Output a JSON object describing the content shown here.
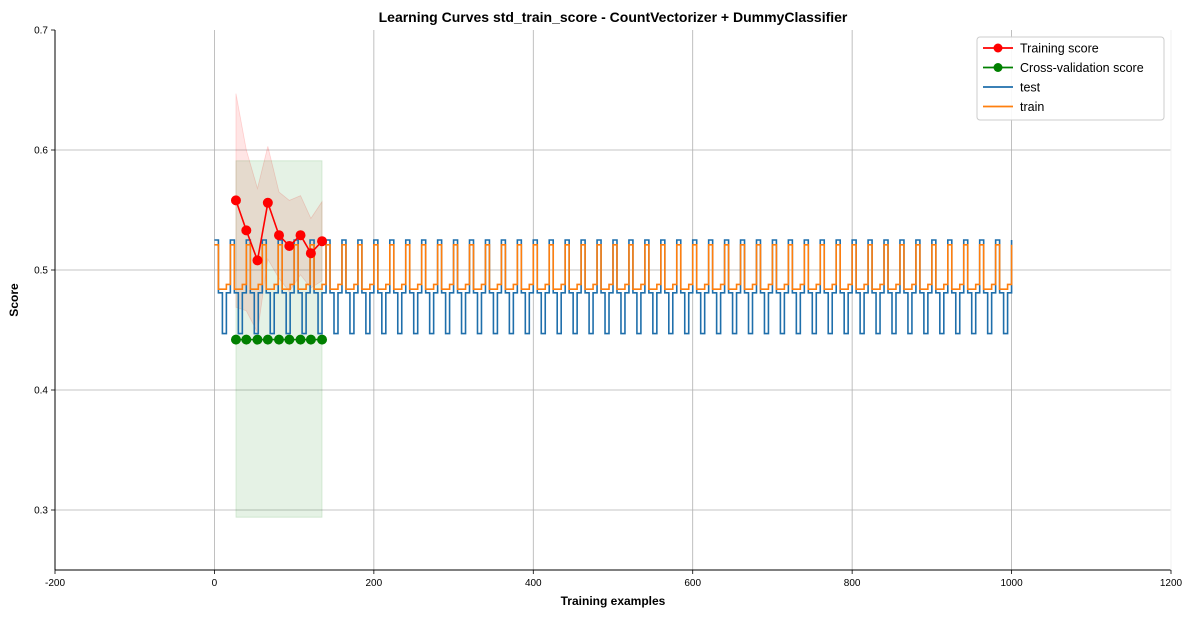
{
  "chart_data": {
    "type": "line",
    "title": "Learning Curves std_train_score - CountVectorizer + DummyClassifier",
    "xlabel": "Training examples",
    "ylabel": "Score",
    "xlim": [
      -200,
      1200
    ],
    "ylim": [
      0.25,
      0.7
    ],
    "xticks": [
      -200,
      0,
      200,
      400,
      600,
      800,
      1000,
      1200
    ],
    "yticks": [
      0.3,
      0.4,
      0.5,
      0.6,
      0.7
    ],
    "grid": true,
    "legend_position": "top-right",
    "train_sizes": [
      27,
      40,
      54,
      67,
      81,
      94,
      108,
      121,
      135
    ],
    "training_score": {
      "name": "Training score",
      "color": "#ff0000",
      "marker": "circle",
      "mean": [
        0.558,
        0.533,
        0.508,
        0.556,
        0.529,
        0.52,
        0.529,
        0.514,
        0.524
      ],
      "upper": [
        0.647,
        0.6,
        0.568,
        0.603,
        0.565,
        0.558,
        0.562,
        0.543,
        0.557
      ],
      "lower": [
        0.469,
        0.466,
        0.448,
        0.509,
        0.493,
        0.482,
        0.496,
        0.485,
        0.491
      ]
    },
    "cv_score": {
      "name": "Cross-validation score",
      "color": "#008000",
      "marker": "circle",
      "mean": [
        0.442,
        0.442,
        0.442,
        0.442,
        0.442,
        0.442,
        0.442,
        0.442,
        0.442
      ],
      "upper": [
        0.591,
        0.591,
        0.591,
        0.591,
        0.591,
        0.591,
        0.591,
        0.591,
        0.591
      ],
      "lower": [
        0.294,
        0.294,
        0.294,
        0.294,
        0.294,
        0.294,
        0.294,
        0.294,
        0.294
      ]
    },
    "step_series": [
      {
        "name": "test",
        "color": "#1f6fab",
        "x_start": 0,
        "x_end": 1000,
        "period": 20,
        "pattern_x": [
          0,
          5,
          10,
          15,
          20
        ],
        "pattern_y": [
          0.525,
          0.481,
          0.447,
          0.481,
          0.525
        ]
      },
      {
        "name": "train",
        "color": "#ff7f0e",
        "x_start": 0,
        "x_end": 1000,
        "period": 20,
        "pattern_x": [
          0,
          5,
          15,
          20
        ],
        "pattern_y": [
          0.521,
          0.484,
          0.488,
          0.521
        ]
      }
    ],
    "legend": [
      "Training score",
      "Cross-validation score",
      "test",
      "train"
    ]
  }
}
